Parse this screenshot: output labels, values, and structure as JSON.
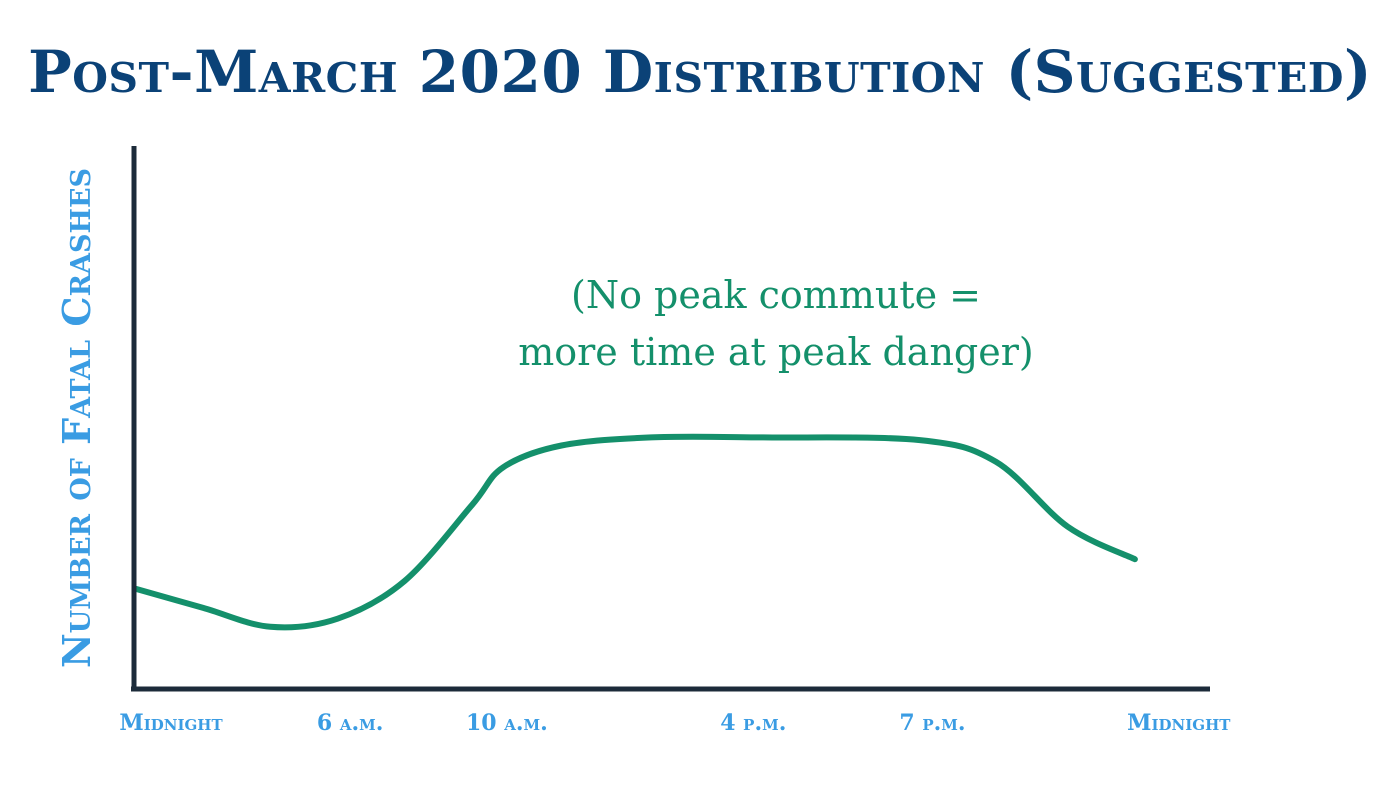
{
  "chart_data": {
    "type": "line",
    "title": "Post-March 2020 Distribution (Suggested)",
    "xlabel": "",
    "ylabel": "Number of Fatal Crashes",
    "x_range": [
      0,
      24
    ],
    "y_range": [
      0,
      100
    ],
    "grid": false,
    "x_ticks": [
      {
        "label": "Midnight",
        "value": 0
      },
      {
        "label": "6 a.m.",
        "value": 4
      },
      {
        "label": "10 a.m.",
        "value": 7.5
      },
      {
        "label": "4 p.m.",
        "value": 13
      },
      {
        "label": "7 p.m.",
        "value": 17
      },
      {
        "label": "Midnight",
        "value": 22.5
      }
    ],
    "annotation": {
      "lines": [
        "(No peak commute =",
        "more time at peak danger)"
      ]
    },
    "series": [
      {
        "name": "Fatal crashes",
        "color": "#14906b",
        "points": [
          {
            "x": 0,
            "y": 18.5
          },
          {
            "x": 1.5,
            "y": 15
          },
          {
            "x": 3,
            "y": 11.5
          },
          {
            "x": 4.5,
            "y": 13
          },
          {
            "x": 6,
            "y": 20
          },
          {
            "x": 7.5,
            "y": 34
          },
          {
            "x": 8.2,
            "y": 41
          },
          {
            "x": 9.5,
            "y": 45
          },
          {
            "x": 11.5,
            "y": 46.5
          },
          {
            "x": 14,
            "y": 46.5
          },
          {
            "x": 17.5,
            "y": 46
          },
          {
            "x": 19.2,
            "y": 42
          },
          {
            "x": 20.8,
            "y": 30
          },
          {
            "x": 22.3,
            "y": 24
          }
        ]
      }
    ]
  }
}
